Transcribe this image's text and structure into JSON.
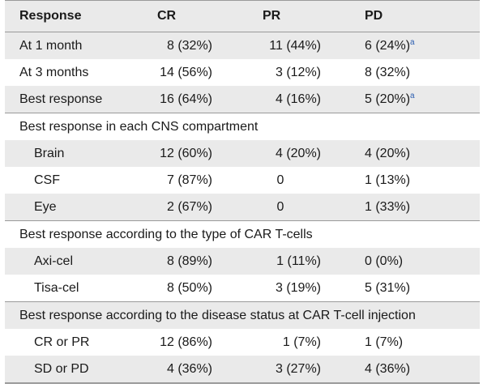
{
  "header": {
    "col0": "Response",
    "col1": "CR",
    "col2": "PR",
    "col3": "PD"
  },
  "timepoints": [
    {
      "label": "At 1 month",
      "cr": "8 (32%)",
      "pr": "11 (44%)",
      "pd": "6 (24%)",
      "pd_note": "a"
    },
    {
      "label": "At 3 months",
      "cr": "14 (56%)",
      "pr": "3 (12%)",
      "pd": "8 (32%)",
      "pd_note": ""
    },
    {
      "label": "Best response",
      "cr": "16 (64%)",
      "pr": "4 (16%)",
      "pd": "5 (20%)",
      "pd_note": "a"
    }
  ],
  "cns": {
    "title": "Best response in each CNS compartment",
    "rows": [
      {
        "label": "Brain",
        "cr": "12 (60%)",
        "pr": "4 (20%)",
        "pd": "4 (20%)"
      },
      {
        "label": "CSF",
        "cr": "7 (87%)",
        "pr": "0",
        "pd": "1 (13%)"
      },
      {
        "label": "Eye",
        "cr": "2 (67%)",
        "pr": "0",
        "pd": "1 (33%)"
      }
    ]
  },
  "cart": {
    "title": "Best response according to the type of CAR T-cells",
    "rows": [
      {
        "label": "Axi-cel",
        "cr": "8 (89%)",
        "pr": "1 (11%)",
        "pd": "0 (0%)"
      },
      {
        "label": "Tisa-cel",
        "cr": "8 (50%)",
        "pr": "3 (19%)",
        "pd": "5 (31%)"
      }
    ]
  },
  "status": {
    "title": "Best response according to the disease status at CAR T-cell injection",
    "rows": [
      {
        "label": "CR or PR",
        "cr": "12 (86%)",
        "pr": "1 (7%)",
        "pd": "1 (7%)"
      },
      {
        "label": "SD or PD",
        "cr": "4 (36%)",
        "pr": "3 (27%)",
        "pd": "4 (36%)"
      }
    ]
  }
}
